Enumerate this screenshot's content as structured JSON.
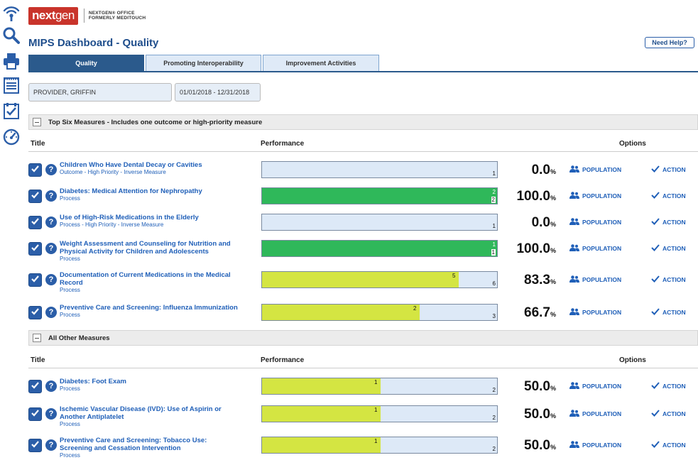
{
  "brand": {
    "logo_text_a": "next",
    "logo_text_b": "gen",
    "logo_sub_line1": "NEXTGEN® OFFICE",
    "logo_sub_line2": "FORMERLY MEDITOUCH"
  },
  "page": {
    "title": "MIPS Dashboard - Quality",
    "help_label": "Need Help?"
  },
  "tabs": [
    {
      "label": "Quality",
      "active": true
    },
    {
      "label": "Promoting Interoperability",
      "active": false
    },
    {
      "label": "Improvement Activities",
      "active": false
    }
  ],
  "filters": {
    "provider": "PROVIDER, GRIFFIN",
    "date_range": "01/01/2018 - 12/31/2018"
  },
  "columns": {
    "title": "Title",
    "performance": "Performance",
    "options": "Options"
  },
  "options": {
    "population_label": "POPULATION",
    "action_label": "ACTION"
  },
  "sections": [
    {
      "title": "Top Six Measures - Includes one outcome or high-priority measure",
      "measures": [
        {
          "name_line1": "Children Who Have Dental Decay or Cavities",
          "name_line2": "",
          "subtitle": "Outcome - High Priority - Inverse Measure",
          "numerator": "",
          "denominator": "1",
          "percent": "0.0",
          "fraction": 0,
          "color": "none"
        },
        {
          "name_line1": "Diabetes: Medical Attention for Nephropathy",
          "name_line2": "",
          "subtitle": "Process",
          "numerator": "2",
          "denominator": "2",
          "percent": "100.0",
          "fraction": 1,
          "color": "green"
        },
        {
          "name_line1": "Use of High-Risk Medications in the Elderly",
          "name_line2": "",
          "subtitle": "Process - High Priority - Inverse Measure",
          "numerator": "",
          "denominator": "1",
          "percent": "0.0",
          "fraction": 0,
          "color": "none"
        },
        {
          "name_line1": "Weight Assessment and Counseling for Nutrition and",
          "name_line2": "Physical Activity for Children and Adolescents",
          "subtitle": "Process",
          "numerator": "1",
          "denominator": "1",
          "percent": "100.0",
          "fraction": 1,
          "color": "green"
        },
        {
          "name_line1": "Documentation of Current Medications in the Medical",
          "name_line2": "Record",
          "subtitle": "Process",
          "numerator": "5",
          "denominator": "6",
          "percent": "83.3",
          "fraction": 0.833,
          "color": "yellow"
        },
        {
          "name_line1": "Preventive Care and Screening: Influenza Immunization",
          "name_line2": "",
          "subtitle": "Process",
          "numerator": "2",
          "denominator": "3",
          "percent": "66.7",
          "fraction": 0.667,
          "color": "yellow"
        }
      ]
    },
    {
      "title": "All Other Measures",
      "measures": [
        {
          "name_line1": "Diabetes: Foot Exam",
          "name_line2": "",
          "subtitle": "Process",
          "numerator": "1",
          "denominator": "2",
          "percent": "50.0",
          "fraction": 0.5,
          "color": "yellow"
        },
        {
          "name_line1": "Ischemic Vascular Disease (IVD): Use of Aspirin or",
          "name_line2": "Another Antiplatelet",
          "subtitle": "Process",
          "numerator": "1",
          "denominator": "2",
          "percent": "50.0",
          "fraction": 0.5,
          "color": "yellow"
        },
        {
          "name_line1": "Preventive Care and Screening: Tobacco Use:",
          "name_line2": "Screening and Cessation Intervention",
          "subtitle": "Process",
          "numerator": "1",
          "denominator": "2",
          "percent": "50.0",
          "fraction": 0.5,
          "color": "yellow"
        }
      ]
    }
  ],
  "icons": {
    "rail": [
      "wireless-icon",
      "search-icon",
      "printer-icon",
      "notepad-icon",
      "checklist-icon",
      "dashboard-gauge-icon"
    ],
    "checkbox": "checkmark-icon",
    "help": "question-circle-icon",
    "population": "people-icon",
    "action": "checkmark-icon"
  },
  "colors": {
    "brand_red": "#c9342b",
    "primary_blue": "#2b5a8c",
    "link_blue": "#1f5fb8",
    "bar_bg": "#dde9f7",
    "bar_green": "#2fb85a",
    "bar_yellow": "#d4e542"
  }
}
